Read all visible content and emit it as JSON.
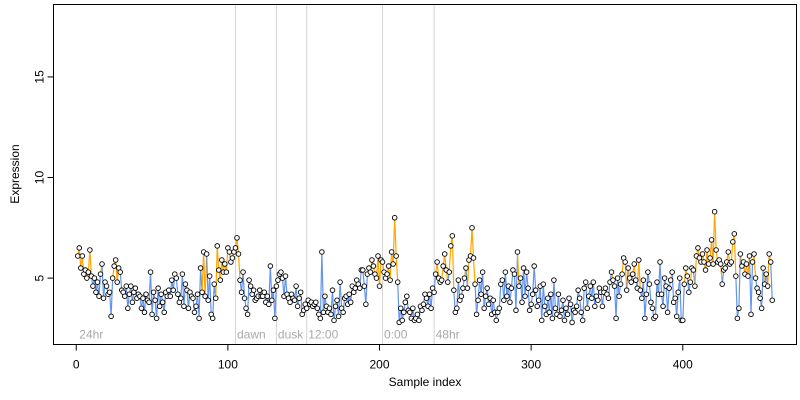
{
  "chart_data": {
    "type": "scatter",
    "title": "",
    "xlabel": "Sample index",
    "ylabel": "Expression",
    "xlim": [
      -15,
      475
    ],
    "ylim": [
      1.7,
      18.6
    ],
    "x_ticks": [
      0,
      100,
      200,
      300,
      400
    ],
    "y_ticks": [
      5,
      10,
      15
    ],
    "grid": false,
    "baseline": 5.1,
    "colors": {
      "above_baseline": "#ffa500",
      "below_baseline": "#6495ed",
      "point_edge": "#000000",
      "divider": "#d3d3d3",
      "region_label": "#a9a9a9"
    },
    "annotations": [
      {
        "label": "24hr",
        "x": 2
      },
      {
        "label": "dawn",
        "x": 106
      },
      {
        "label": "dusk",
        "x": 133
      },
      {
        "label": "12:00",
        "x": 153
      },
      {
        "label": "0:00",
        "x": 203
      },
      {
        "label": "48hr",
        "x": 237
      }
    ],
    "dividers": [
      105,
      132,
      152,
      202,
      236
    ],
    "values": [
      6.1,
      6.5,
      5.5,
      6.1,
      5.2,
      5.4,
      5.0,
      5.3,
      6.4,
      5.1,
      4.6,
      5.0,
      4.3,
      4.8,
      4.1,
      5.2,
      5.7,
      4.0,
      4.8,
      4.6,
      4.2,
      4.3,
      3.1,
      5.0,
      5.6,
      5.9,
      4.8,
      5.5,
      5.3,
      4.4,
      4.3,
      4.1,
      4.6,
      3.5,
      4.2,
      4.6,
      3.8,
      4.3,
      4.5,
      4.0,
      4.2,
      4.1,
      3.5,
      4.0,
      3.3,
      4.2,
      3.9,
      3.8,
      5.3,
      3.2,
      4.3,
      3.9,
      3.0,
      4.5,
      3.6,
      4.2,
      3.8,
      3.3,
      4.3,
      4.1,
      4.4,
      4.1,
      4.9,
      4.4,
      5.2,
      5.0,
      4.2,
      3.8,
      4.0,
      5.2,
      3.6,
      4.7,
      4.4,
      3.5,
      4.3,
      4.1,
      4.0,
      3.3,
      3.6,
      4.2,
      3.0,
      5.5,
      4.3,
      6.3,
      4.1,
      6.2,
      3.9,
      5.1,
      3.2,
      3.0,
      4.7,
      4.0,
      6.6,
      5.4,
      4.9,
      5.9,
      5.3,
      5.7,
      5.3,
      6.5,
      6.3,
      5.8,
      6.0,
      6.3,
      6.5,
      7.0,
      6.2,
      4.9,
      4.3,
      5.3,
      4.0,
      3.5,
      3.2,
      4.9,
      4.6,
      4.2,
      4.4,
      3.9,
      4.0,
      4.1,
      4.4,
      4.1,
      4.1,
      4.3,
      3.8,
      4.1,
      3.7,
      5.6,
      3.9,
      4.4,
      3.0,
      4.6,
      4.9,
      5.2,
      5.3,
      5.0,
      4.1,
      5.1,
      4.2,
      4.0,
      3.8,
      4.2,
      4.0,
      3.9,
      4.6,
      3.6,
      4.0,
      4.3,
      3.2,
      3.4,
      3.7,
      3.5,
      3.9,
      3.7,
      3.8,
      3.6,
      3.7,
      3.8,
      3.5,
      3.2,
      3.0,
      6.3,
      3.3,
      4.1,
      3.6,
      3.3,
      3.5,
      3.2,
      4.4,
      2.9,
      3.6,
      3.9,
      3.1,
      4.8,
      3.5,
      3.3,
      4.0,
      4.1,
      3.7,
      4.2,
      3.8,
      4.6,
      4.3,
      4.5,
      4.9,
      4.7,
      4.5,
      5.4,
      5.4,
      4.6,
      3.7,
      5.2,
      5.5,
      5.3,
      5.9,
      5.6,
      5.2,
      5.0,
      6.1,
      4.6,
      5.9,
      5.8,
      5.3,
      5.0,
      5.2,
      5.6,
      4.9,
      6.3,
      5.7,
      8.0,
      6.1,
      4.8,
      2.8,
      3.5,
      2.9,
      3.3,
      3.8,
      4.1,
      3.4,
      3.3,
      3.0,
      3.5,
      2.9,
      3.0,
      3.2,
      2.9,
      3.6,
      3.4,
      3.7,
      4.2,
      4.0,
      3.6,
      4.2,
      3.5,
      4.5,
      4.3,
      5.2,
      5.8,
      5.0,
      4.8,
      4.9,
      5.6,
      6.2,
      5.4,
      4.8,
      5.3,
      6.6,
      7.1,
      4.4,
      3.3,
      3.5,
      4.9,
      3.9,
      4.1,
      4.5,
      5.0,
      5.5,
      4.5,
      5.9,
      6.1,
      7.5,
      6.0,
      4.7,
      3.2,
      3.9,
      4.9,
      4.2,
      5.3,
      3.5,
      4.1,
      4.5,
      3.7,
      4.0,
      3.2,
      3.9,
      3.3,
      2.9,
      3.3,
      3.5,
      4.7,
      4.9,
      3.9,
      5.3,
      4.1,
      4.6,
      3.8,
      4.5,
      5.4,
      5.2,
      3.4,
      6.3,
      4.6,
      5.0,
      3.8,
      5.5,
      4.1,
      5.3,
      4.5,
      3.4,
      3.7,
      4.2,
      5.6,
      4.4,
      3.6,
      3.9,
      4.6,
      2.9,
      4.7,
      3.6,
      3.2,
      4.0,
      3.3,
      4.2,
      3.0,
      4.9,
      3.5,
      3.2,
      4.2,
      3.1,
      3.4,
      3.9,
      2.9,
      3.5,
      3.2,
      4.0,
      3.7,
      2.8,
      3.4,
      3.3,
      3.6,
      4.4,
      4.0,
      3.3,
      2.9,
      4.5,
      4.8,
      3.5,
      4.1,
      4.6,
      4.0,
      4.8,
      3.6,
      4.1,
      3.9,
      4.5,
      4.3,
      3.6,
      4.3,
      4.5,
      4.2,
      4.0,
      4.8,
      5.3,
      4.9,
      4.6,
      3.0,
      5.0,
      4.1,
      4.7,
      5.2,
      6.0,
      5.8,
      4.4,
      5.5,
      5.0,
      4.8,
      5.2,
      5.7,
      4.9,
      4.5,
      5.9,
      4.4,
      4.0,
      4.9,
      3.0,
      4.2,
      5.3,
      4.7,
      3.8,
      3.5,
      3.0,
      3.1,
      4.8,
      4.2,
      5.8,
      4.2,
      3.6,
      5.0,
      4.6,
      3.3,
      4.5,
      4.9,
      5.3,
      3.8,
      4.0,
      3.1,
      4.3,
      5.0,
      2.9,
      2.9,
      4.7,
      5.5,
      5.1,
      4.3,
      4.8,
      5.5,
      5.4,
      4.6,
      6.1,
      6.5,
      6.0,
      5.8,
      6.2,
      5.8,
      5.4,
      6.4,
      5.7,
      6.0,
      6.9,
      5.7,
      8.3,
      6.4,
      5.8,
      5.9,
      5.7,
      4.7,
      5.4,
      5.5,
      5.8,
      6.3,
      5.7,
      5.8,
      6.8,
      7.2,
      5.1,
      3.0,
      3.5,
      6.2,
      5.6,
      5.8,
      5.2,
      5.7,
      5.1,
      6.1,
      3.2,
      5.8,
      6.2,
      5.0,
      4.5,
      4.3,
      4.0,
      3.5,
      5.5,
      4.7,
      5.2,
      4.6,
      6.2,
      5.8,
      3.9
    ]
  }
}
